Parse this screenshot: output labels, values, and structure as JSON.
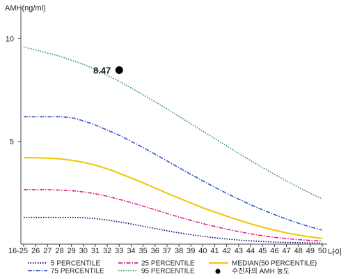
{
  "chart_data": {
    "type": "line",
    "ylabel": "AMH(ng/ml)",
    "xlabel": "나이",
    "ylim": [
      0,
      11
    ],
    "yticks": [
      5,
      10
    ],
    "categories": [
      "16-25",
      "26",
      "27",
      "28",
      "29",
      "30",
      "31",
      "32",
      "33",
      "34",
      "35",
      "36",
      "37",
      "38",
      "39",
      "40",
      "41",
      "42",
      "43",
      "44",
      "45",
      "46",
      "47",
      "48",
      "49",
      "50"
    ],
    "series": [
      {
        "name": "5 PERCENTILE",
        "color": "#000066",
        "style": "dotted",
        "values": [
          1.3,
          1.3,
          1.3,
          1.3,
          1.3,
          1.28,
          1.24,
          1.17,
          1.08,
          0.98,
          0.87,
          0.76,
          0.65,
          0.55,
          0.46,
          0.38,
          0.31,
          0.25,
          0.2,
          0.16,
          0.13,
          0.1,
          0.08,
          0.07,
          0.06,
          0.05
        ]
      },
      {
        "name": "25 PERCENTILE",
        "color": "#e0208a",
        "style": "dashdot",
        "values": [
          2.65,
          2.65,
          2.65,
          2.63,
          2.6,
          2.54,
          2.45,
          2.33,
          2.18,
          2.02,
          1.85,
          1.67,
          1.49,
          1.32,
          1.16,
          1.0,
          0.86,
          0.73,
          0.61,
          0.5,
          0.41,
          0.33,
          0.27,
          0.22,
          0.18,
          0.15
        ]
      },
      {
        "name": "MEDIAN(50 PERCENTILE)",
        "color": "#f2c400",
        "style": "solid",
        "values": [
          4.2,
          4.2,
          4.18,
          4.15,
          4.08,
          3.98,
          3.84,
          3.66,
          3.45,
          3.22,
          2.98,
          2.73,
          2.48,
          2.24,
          2.0,
          1.77,
          1.56,
          1.36,
          1.17,
          0.99,
          0.83,
          0.68,
          0.55,
          0.44,
          0.35,
          0.28
        ]
      },
      {
        "name": "75 PERCENTILE",
        "color": "#3355cc",
        "style": "dashdot",
        "values": [
          6.2,
          6.2,
          6.2,
          6.2,
          6.15,
          6.0,
          5.8,
          5.55,
          5.3,
          5.0,
          4.7,
          4.38,
          4.05,
          3.72,
          3.4,
          3.08,
          2.77,
          2.47,
          2.19,
          1.92,
          1.67,
          1.44,
          1.22,
          1.02,
          0.84,
          0.68
        ]
      },
      {
        "name": "95 PERCENTILE",
        "color": "#2e8b57",
        "style": "dotted",
        "values": [
          9.6,
          9.45,
          9.3,
          9.15,
          8.95,
          8.75,
          8.5,
          8.22,
          7.92,
          7.6,
          7.27,
          6.93,
          6.58,
          6.22,
          5.86,
          5.5,
          5.14,
          4.78,
          4.42,
          4.07,
          3.73,
          3.4,
          3.08,
          2.77,
          2.48,
          2.2
        ]
      }
    ],
    "marker": {
      "label": "수진자의 AMH 농도",
      "category": "33",
      "value": 8.47,
      "value_label": "8.47",
      "color": "#000000"
    },
    "legend_position": "bottom",
    "grid": false
  }
}
